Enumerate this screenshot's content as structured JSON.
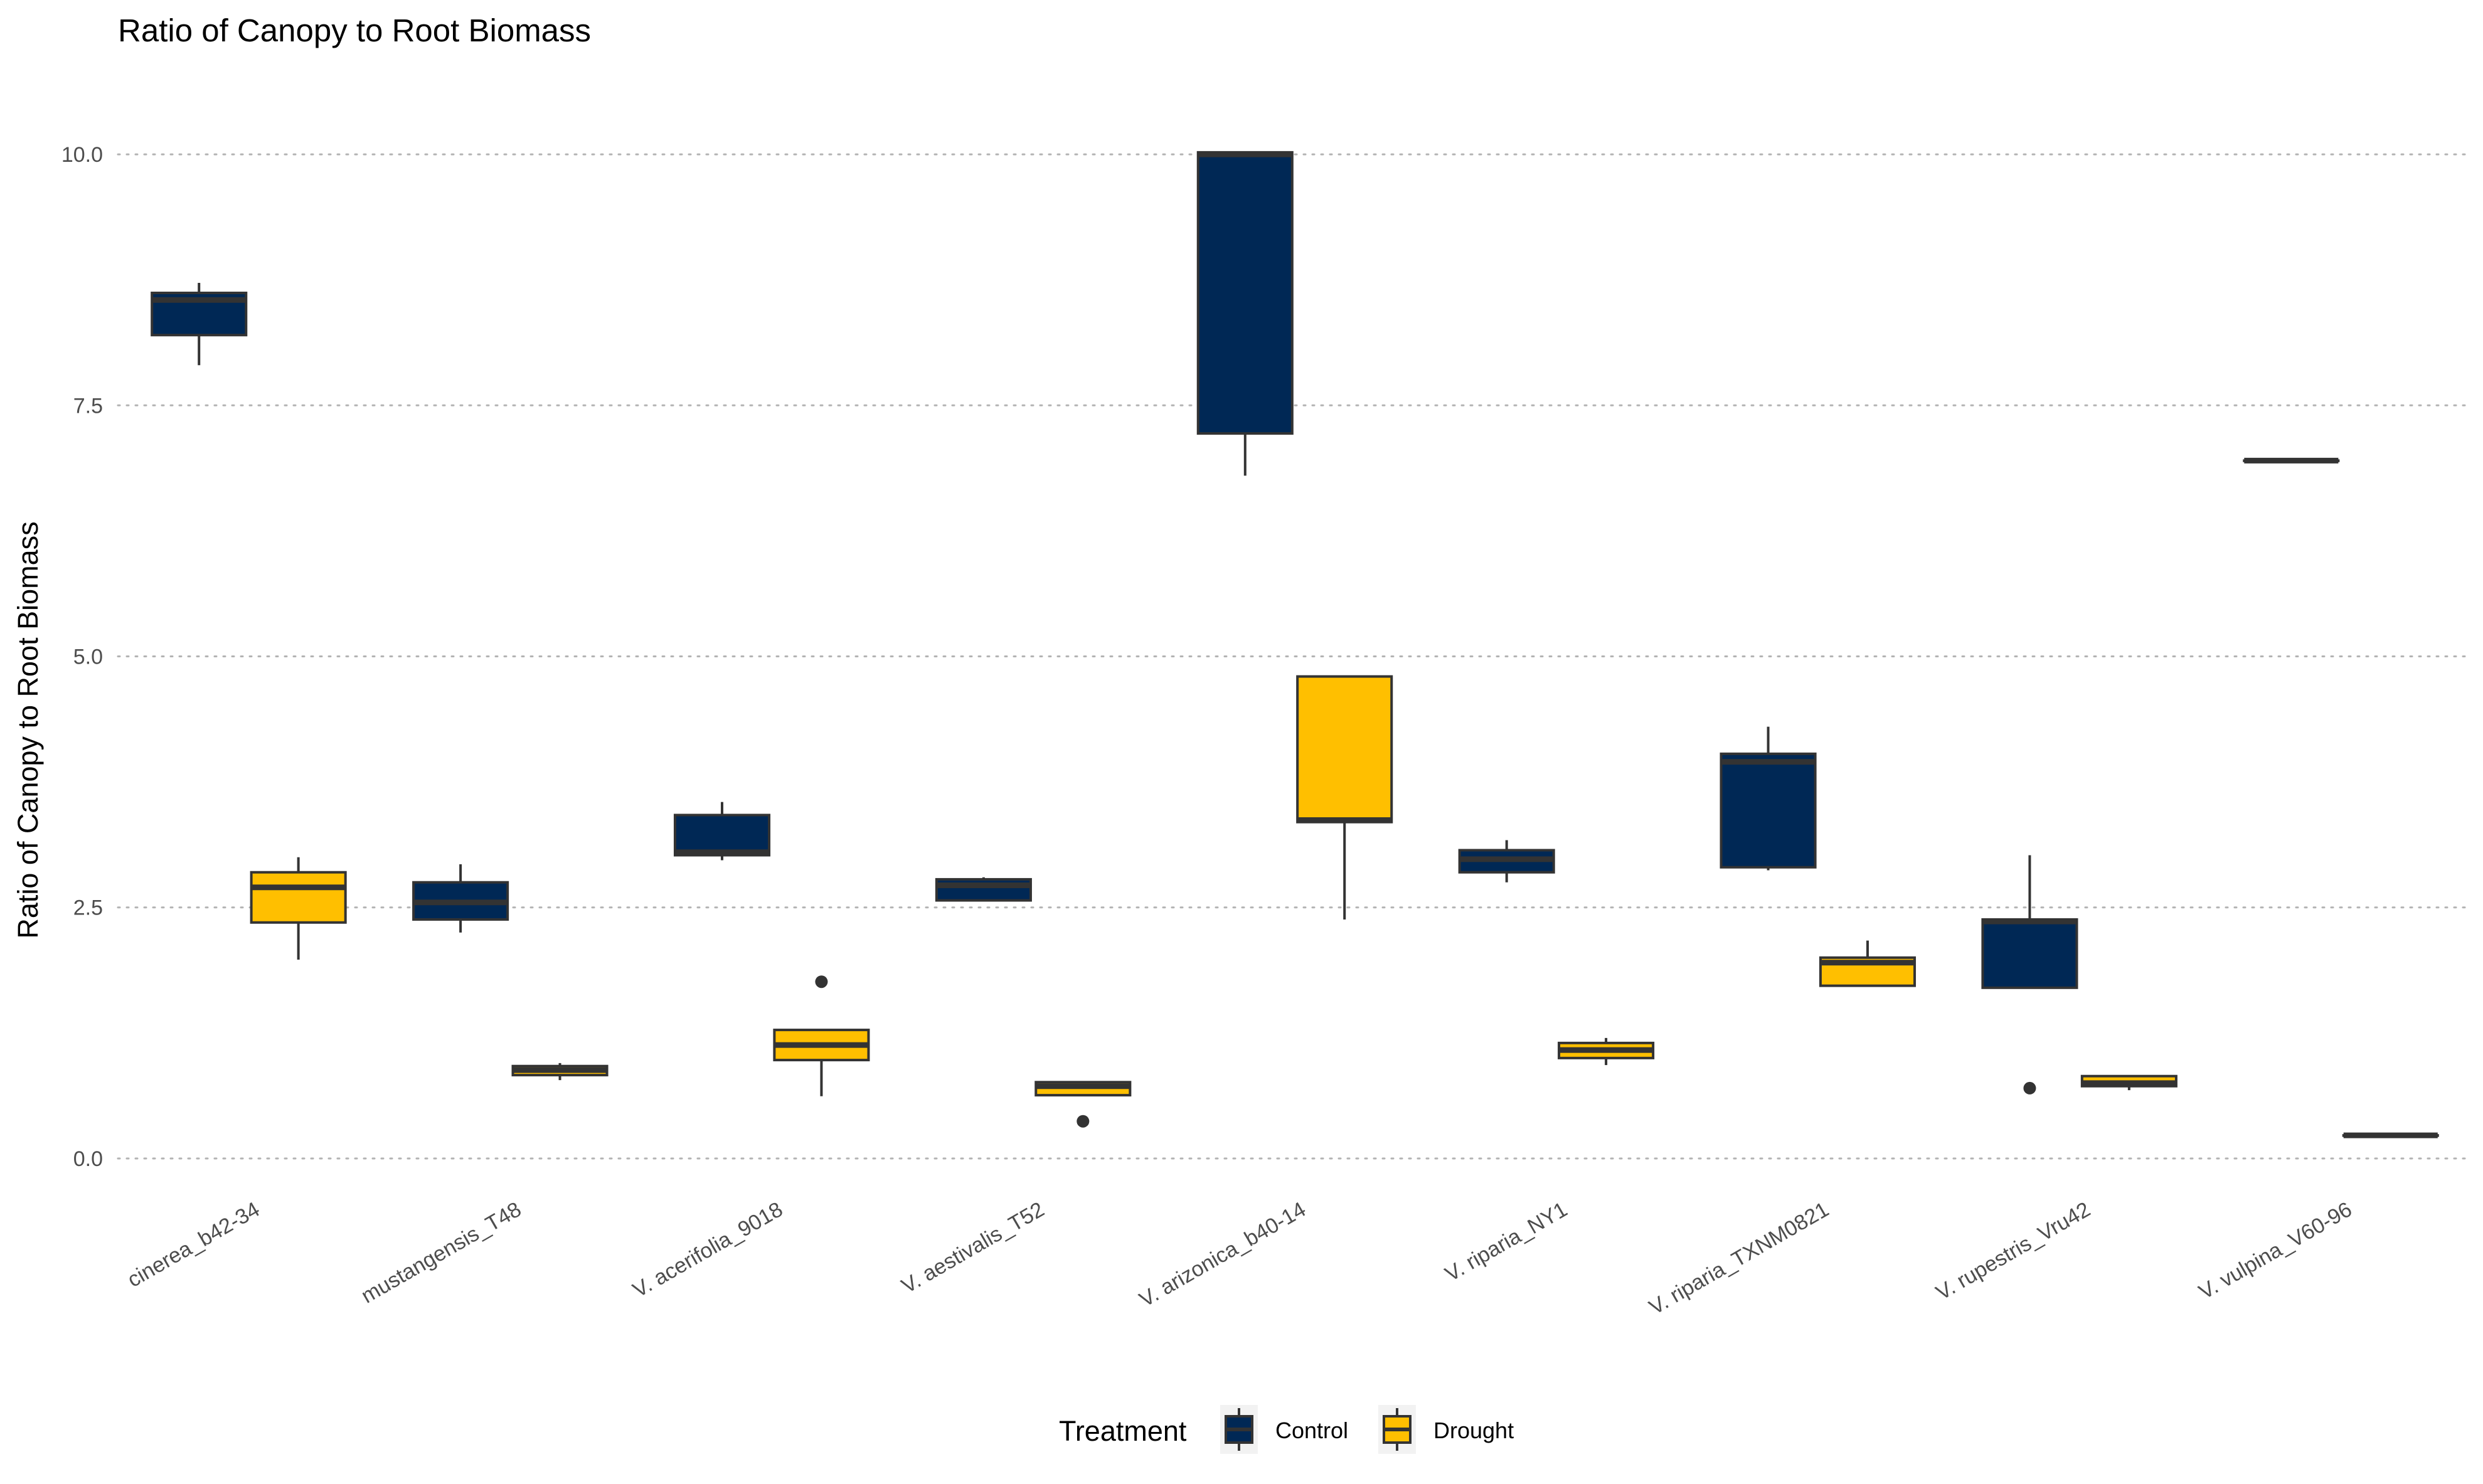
{
  "chart_data": {
    "type": "box",
    "title": "Ratio of Canopy to Root Biomass",
    "xlabel": "",
    "ylabel": "Ratio of Canopy to Root Biomass",
    "ylim": [
      -0.3,
      10.85
    ],
    "yticks": [
      0.0,
      2.5,
      5.0,
      7.5,
      10.0
    ],
    "ytick_labels": [
      "0.0",
      "2.5",
      "5.0",
      "7.5",
      "10.0"
    ],
    "grid": "horizontal-dotted",
    "legend": {
      "title": "Treatment",
      "position": "bottom",
      "entries": [
        "Control",
        "Drought"
      ]
    },
    "categories": [
      "cinerea_b42-34",
      "mustangensis_T48",
      "V. acerifolia_9018",
      "V. aestivalis_T52",
      "V. arizonica_b40-14",
      "V. riparia_NY1",
      "V. riparia_TXNM0821",
      "V. rupestris_Vru42",
      "V. vulpina_V60-96"
    ],
    "series": [
      {
        "name": "Control",
        "color": "#002855",
        "boxes": [
          {
            "whisker_low": 7.9,
            "q1": 8.2,
            "median": 8.55,
            "q3": 8.62,
            "whisker_high": 8.72,
            "outliers": []
          },
          {
            "whisker_low": 2.25,
            "q1": 2.38,
            "median": 2.55,
            "q3": 2.75,
            "whisker_high": 2.93,
            "outliers": []
          },
          {
            "whisker_low": 2.97,
            "q1": 3.02,
            "median": 3.05,
            "q3": 3.42,
            "whisker_high": 3.55,
            "outliers": []
          },
          {
            "whisker_low": 2.57,
            "q1": 2.57,
            "median": 2.72,
            "q3": 2.78,
            "whisker_high": 2.8,
            "outliers": []
          },
          {
            "whisker_low": 6.8,
            "q1": 7.22,
            "median": 10.0,
            "q3": 10.02,
            "whisker_high": 10.02,
            "outliers": []
          },
          {
            "whisker_low": 2.75,
            "q1": 2.85,
            "median": 2.98,
            "q3": 3.07,
            "whisker_high": 3.17,
            "outliers": []
          },
          {
            "whisker_low": 2.87,
            "q1": 2.9,
            "median": 3.95,
            "q3": 4.03,
            "whisker_high": 4.3,
            "outliers": []
          },
          {
            "whisker_low": 1.7,
            "q1": 1.7,
            "median": 2.36,
            "q3": 2.38,
            "whisker_high": 3.02,
            "outliers": [
              0.7
            ]
          },
          {
            "whisker_low": 6.95,
            "q1": 6.95,
            "median": 6.95,
            "q3": 6.95,
            "whisker_high": 6.95,
            "outliers": []
          }
        ]
      },
      {
        "name": "Drought",
        "color": "#FFBF00",
        "boxes": [
          {
            "whisker_low": 1.98,
            "q1": 2.35,
            "median": 2.7,
            "q3": 2.85,
            "whisker_high": 3.0,
            "outliers": []
          },
          {
            "whisker_low": 0.78,
            "q1": 0.83,
            "median": 0.88,
            "q3": 0.92,
            "whisker_high": 0.95,
            "outliers": []
          },
          {
            "whisker_low": 0.62,
            "q1": 0.98,
            "median": 1.13,
            "q3": 1.28,
            "whisker_high": 1.28,
            "outliers": [
              1.76
            ]
          },
          {
            "whisker_low": 0.63,
            "q1": 0.63,
            "median": 0.72,
            "q3": 0.76,
            "whisker_high": 0.76,
            "outliers": [
              0.37
            ]
          },
          {
            "whisker_low": 2.38,
            "q1": 3.35,
            "median": 3.37,
            "q3": 4.8,
            "whisker_high": 4.8,
            "outliers": []
          },
          {
            "whisker_low": 0.93,
            "q1": 1.0,
            "median": 1.08,
            "q3": 1.15,
            "whisker_high": 1.2,
            "outliers": []
          },
          {
            "whisker_low": 1.72,
            "q1": 1.72,
            "median": 1.95,
            "q3": 2.0,
            "whisker_high": 2.17,
            "outliers": []
          },
          {
            "whisker_low": 0.68,
            "q1": 0.72,
            "median": 0.75,
            "q3": 0.82,
            "whisker_high": 0.82,
            "outliers": []
          },
          {
            "whisker_low": 0.23,
            "q1": 0.23,
            "median": 0.23,
            "q3": 0.23,
            "whisker_high": 0.23,
            "outliers": []
          }
        ]
      }
    ]
  }
}
